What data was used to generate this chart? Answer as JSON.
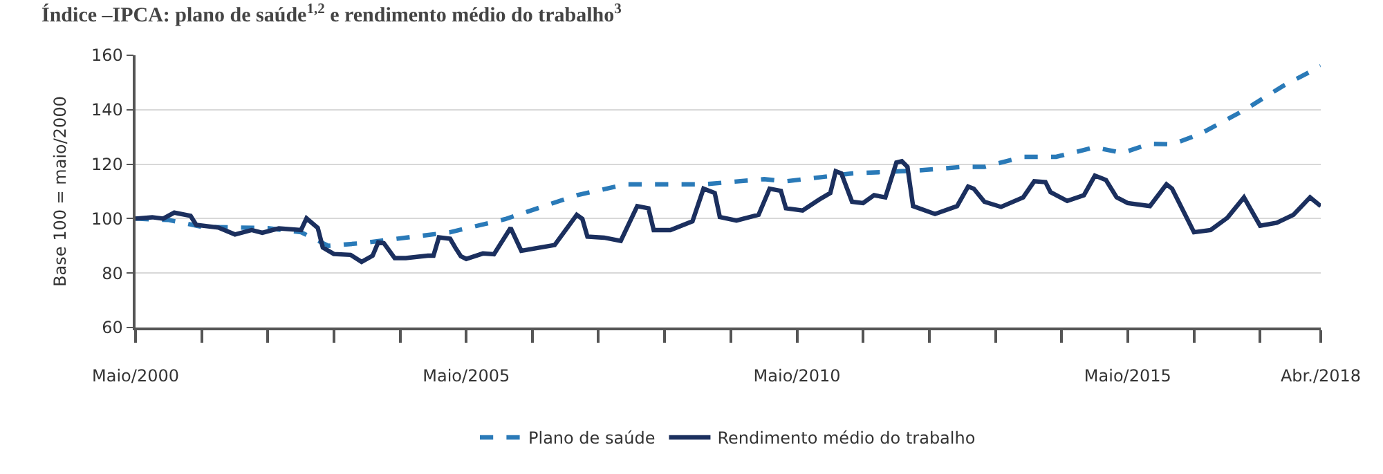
{
  "chart_data": {
    "type": "line",
    "title": "Índice –IPCA: plano de saúde$^{1,2}$ e rendimento médio do trabalho$^{3}$",
    "ylabel": "Base 100 = maio/2000",
    "xlim": [
      "2000-05",
      "2018-04"
    ],
    "ylim": [
      60,
      160
    ],
    "yticks": [
      60,
      80,
      100,
      120,
      140,
      160
    ],
    "xticks": [
      {
        "value": "2000-05",
        "label": "Maio/2000"
      },
      {
        "value": "2001-05",
        "label": null
      },
      {
        "value": "2002-05",
        "label": null
      },
      {
        "value": "2003-05",
        "label": null
      },
      {
        "value": "2004-05",
        "label": null
      },
      {
        "value": "2005-05",
        "label": "Maio/2005"
      },
      {
        "value": "2006-05",
        "label": null
      },
      {
        "value": "2007-05",
        "label": null
      },
      {
        "value": "2008-05",
        "label": null
      },
      {
        "value": "2009-05",
        "label": null
      },
      {
        "value": "2010-05",
        "label": "Maio/2010"
      },
      {
        "value": "2011-05",
        "label": null
      },
      {
        "value": "2012-05",
        "label": null
      },
      {
        "value": "2013-05",
        "label": null
      },
      {
        "value": "2014-05",
        "label": null
      },
      {
        "value": "2015-05",
        "label": "Maio/2015"
      },
      {
        "value": "2016-05",
        "label": null
      },
      {
        "value": "2017-05",
        "label": null
      },
      {
        "value": "2018-04",
        "label": "Abr./2018"
      }
    ],
    "grid": "y",
    "legend": "bottom",
    "marker": "none",
    "series": [
      {
        "name": "Plano de saúde",
        "color": "#2a7ab8",
        "line_style": "dashed",
        "x": [
          "2000-05",
          "2000-11",
          "2001-05",
          "2002-05",
          "2002-11",
          "2003-04",
          "2003-10",
          "2005-02",
          "2005-12",
          "2007-01",
          "2007-10",
          "2008-12",
          "2009-11",
          "2010-03",
          "2011-03",
          "2012-03",
          "2012-11",
          "2013-03",
          "2013-10",
          "2014-04",
          "2014-11",
          "2015-04",
          "2015-09",
          "2016-01",
          "2016-06",
          "2017-02",
          "2017-09",
          "2018-04"
        ],
        "values": [
          100,
          99.5,
          97,
          96.5,
          95,
          90,
          91,
          95,
          99.8,
          108.6,
          112.6,
          112.6,
          114.5,
          113.7,
          116.6,
          117.7,
          119,
          119,
          122.7,
          122.7,
          126.2,
          124.1,
          127.5,
          127.3,
          131,
          139.8,
          148.6,
          156
        ]
      },
      {
        "name": "Rendimento médio do trabalho",
        "color": "#1b2f5e",
        "line_style": "solid",
        "x": [
          "2000-05",
          "2000-08",
          "2000-10",
          "2000-12",
          "2001-03",
          "2001-04",
          "2001-08",
          "2001-11",
          "2002-02",
          "2002-04",
          "2002-07",
          "2002-11",
          "2002-12",
          "2003-02",
          "2003-03",
          "2003-05",
          "2003-08",
          "2003-10",
          "2003-12",
          "2004-01",
          "2004-02",
          "2004-04",
          "2004-06",
          "2004-10",
          "2004-11",
          "2004-12",
          "2005-02",
          "2005-03",
          "2005-04",
          "2005-05",
          "2005-08",
          "2005-10",
          "2006-01",
          "2006-03",
          "2006-09",
          "2007-01",
          "2007-02",
          "2007-03",
          "2007-06",
          "2007-09",
          "2007-12",
          "2008-02",
          "2008-03",
          "2008-06",
          "2008-10",
          "2008-12",
          "2009-02",
          "2009-03",
          "2009-06",
          "2009-10",
          "2009-12",
          "2010-02",
          "2010-03",
          "2010-06",
          "2010-09",
          "2010-11",
          "2010-12",
          "2011-01",
          "2011-03",
          "2011-05",
          "2011-07",
          "2011-09",
          "2011-11",
          "2011-12",
          "2012-01",
          "2012-02",
          "2012-06",
          "2012-10",
          "2012-12",
          "2013-01",
          "2013-03",
          "2013-06",
          "2013-10",
          "2013-12",
          "2014-02",
          "2014-03",
          "2014-06",
          "2014-09",
          "2014-11",
          "2015-01",
          "2015-03",
          "2015-05",
          "2015-09",
          "2015-12",
          "2016-01",
          "2016-05",
          "2016-08",
          "2016-11",
          "2017-02",
          "2017-05",
          "2017-08",
          "2017-11",
          "2018-02",
          "2018-04"
        ],
        "values": [
          100,
          100.5,
          100,
          102.2,
          101,
          97.7,
          96.7,
          94.2,
          95.8,
          94.8,
          96.4,
          95.8,
          100.1,
          96.6,
          89.4,
          87,
          86.7,
          84.1,
          86.4,
          91.3,
          91,
          85.5,
          85.5,
          86.4,
          86.4,
          93.1,
          92.6,
          89.4,
          86.2,
          85.2,
          87.2,
          86.9,
          96.6,
          88.2,
          90.3,
          101.4,
          99.9,
          93.4,
          93,
          91.8,
          104.6,
          103.8,
          95.8,
          95.8,
          99,
          111,
          109.4,
          100.6,
          99.3,
          101.4,
          111,
          110.2,
          103.8,
          103,
          107,
          109.4,
          117.4,
          116.6,
          106.2,
          105.7,
          108.6,
          107.8,
          120.6,
          121.1,
          119,
          104.6,
          101.7,
          104.6,
          111.8,
          111,
          106.2,
          104.3,
          107.8,
          113.7,
          113.4,
          109.7,
          106.5,
          108.6,
          115.8,
          114.2,
          107.8,
          105.7,
          104.6,
          112.6,
          111,
          95,
          95.8,
          100.3,
          107.8,
          97.4,
          98.5,
          101.4,
          107.8,
          104.6
        ]
      }
    ]
  }
}
